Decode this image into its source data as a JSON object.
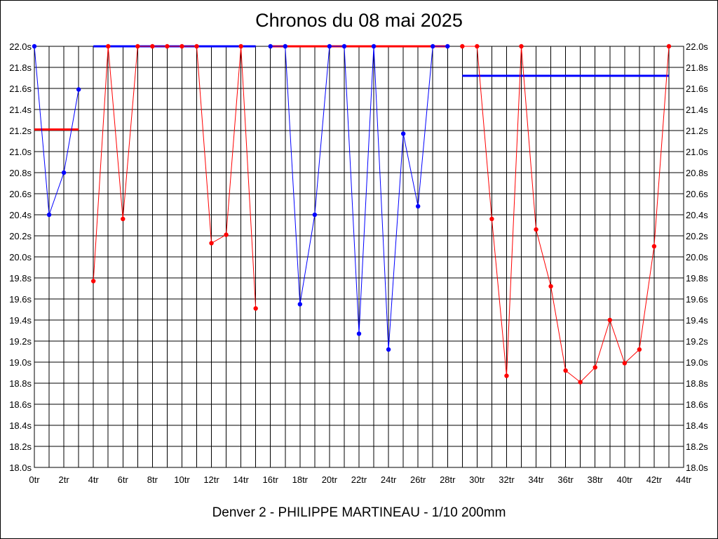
{
  "chart_data": {
    "type": "line",
    "title": "Chronos du 08 mai 2025",
    "footer": "Denver 2 - PHILIPPE MARTINEAU - 1/10 200mm",
    "xlabel": "",
    "ylabel": "",
    "xlim": [
      0,
      44
    ],
    "ylim": [
      18.0,
      22.0
    ],
    "x_ticks": [
      "0tr",
      "2tr",
      "4tr",
      "6tr",
      "8tr",
      "10tr",
      "12tr",
      "14tr",
      "16tr",
      "18tr",
      "20tr",
      "22tr",
      "24tr",
      "26tr",
      "28tr",
      "30tr",
      "32tr",
      "34tr",
      "36tr",
      "38tr",
      "40tr",
      "42tr",
      "44tr"
    ],
    "y_ticks": [
      "18.0s",
      "18.2s",
      "18.4s",
      "18.6s",
      "18.8s",
      "19.0s",
      "19.2s",
      "19.4s",
      "19.6s",
      "19.8s",
      "20.0s",
      "20.2s",
      "20.4s",
      "20.6s",
      "20.8s",
      "21.0s",
      "21.2s",
      "21.4s",
      "21.6s",
      "21.8s",
      "22.0s"
    ],
    "grid": true,
    "series": [
      {
        "name": "blue-1",
        "color": "#0000ff",
        "x": [
          0,
          1,
          2,
          3
        ],
        "y": [
          22.0,
          20.4,
          20.8,
          21.59
        ]
      },
      {
        "name": "red-1",
        "color": "#ff0000",
        "x": [
          4,
          5,
          6,
          7,
          8,
          9,
          10,
          11,
          12,
          13,
          14,
          15
        ],
        "y": [
          19.77,
          22.0,
          20.36,
          22.0,
          22.0,
          22.0,
          22.0,
          22.0,
          20.13,
          20.21,
          22.0,
          19.51
        ]
      },
      {
        "name": "blue-2",
        "color": "#0000ff",
        "x": [
          16,
          17,
          18,
          19,
          20,
          21,
          22,
          23,
          24,
          25,
          26,
          27,
          28
        ],
        "y": [
          22.0,
          22.0,
          19.55,
          20.4,
          22.0,
          22.0,
          19.27,
          22.0,
          19.12,
          21.17,
          20.48,
          22.0,
          22.0
        ]
      },
      {
        "name": "red-2",
        "color": "#ff0000",
        "x": [
          29,
          30,
          31,
          32,
          33,
          34,
          35,
          36,
          37,
          38,
          39,
          40,
          41,
          42,
          43
        ],
        "y": [
          22.0,
          22.0,
          20.36,
          18.87,
          22.0,
          20.26,
          19.72,
          18.92,
          18.81,
          18.95,
          19.4,
          18.99,
          19.12,
          20.1,
          22.0
        ]
      }
    ],
    "reference_lines": [
      {
        "color": "#ff0000",
        "x0": 0,
        "x1": 3,
        "y": 21.21
      },
      {
        "color": "#0000ff",
        "x0": 4,
        "x1": 15,
        "y": 22.0
      },
      {
        "color": "#ff0000",
        "x0": 16,
        "x1": 28,
        "y": 22.0
      },
      {
        "color": "#0000ff",
        "x0": 29,
        "x1": 43,
        "y": 21.72
      }
    ]
  }
}
